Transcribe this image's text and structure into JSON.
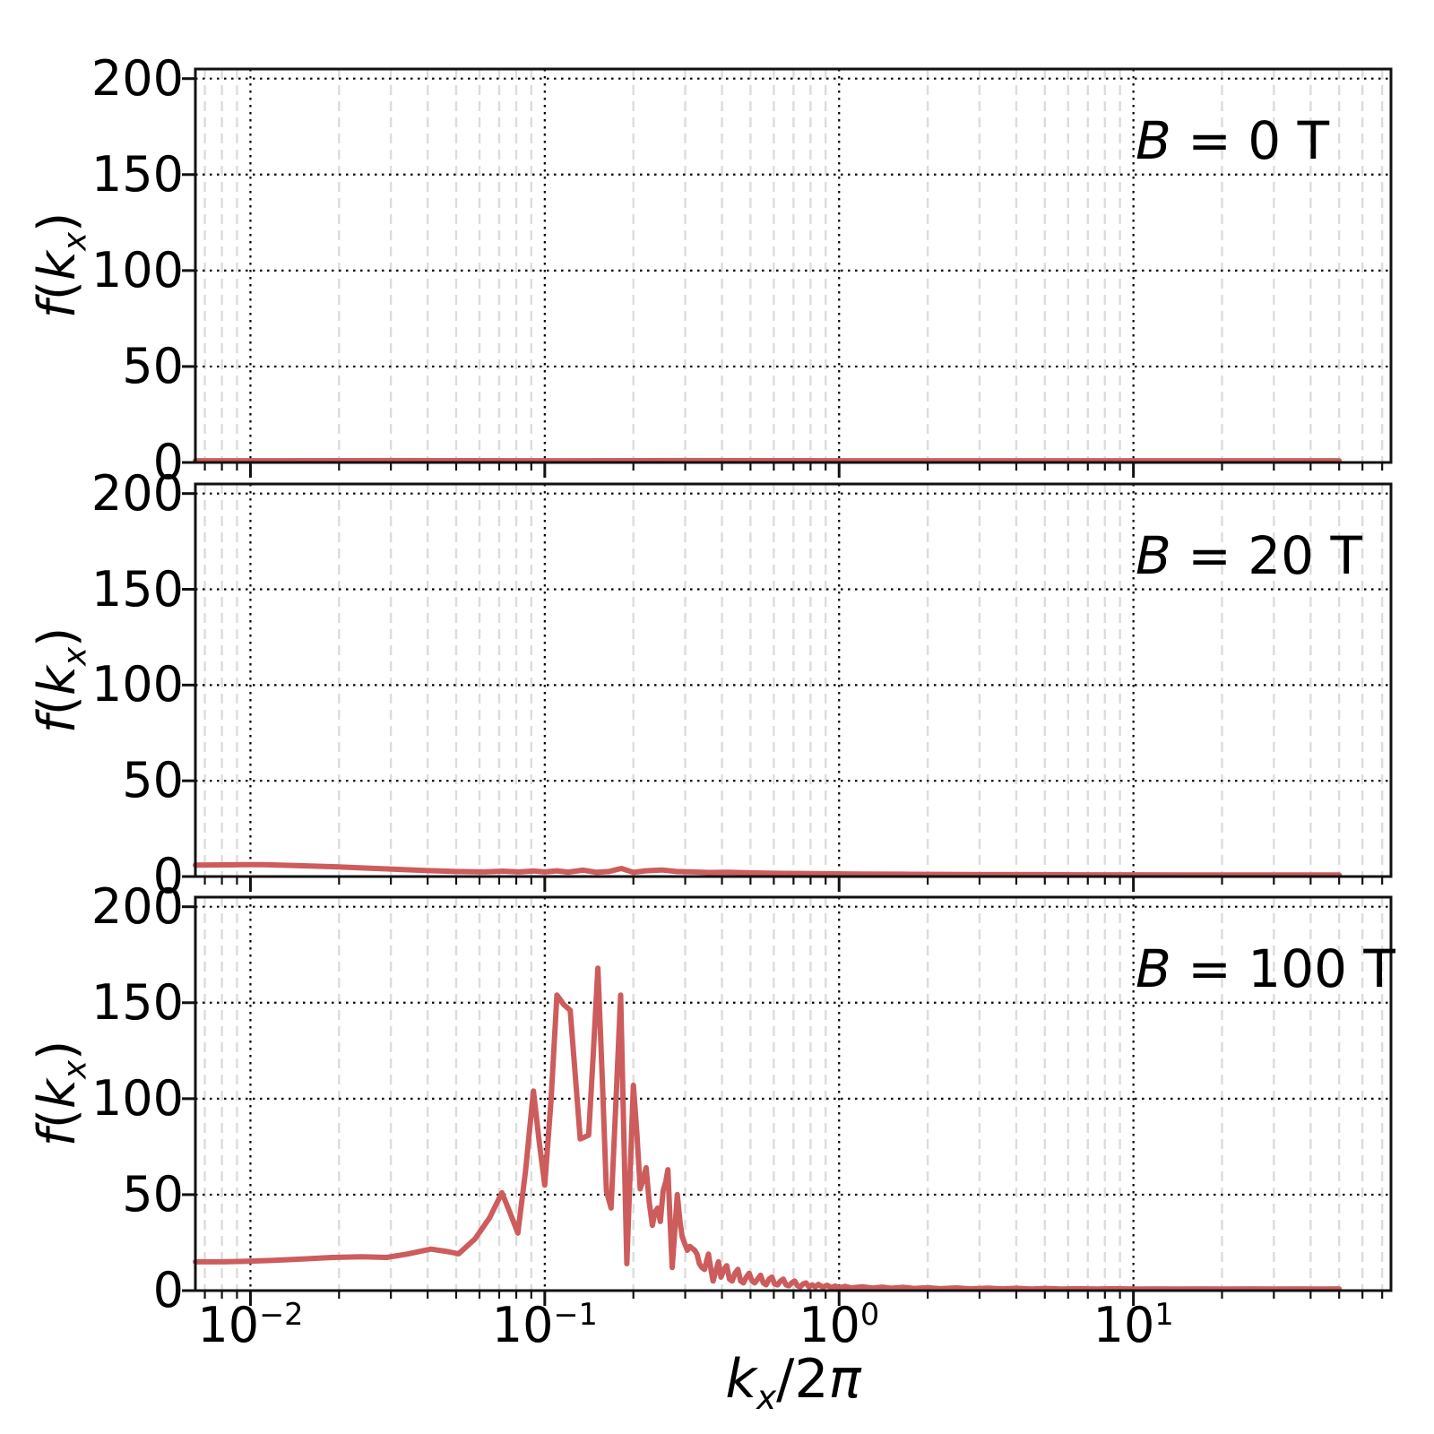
{
  "figure": {
    "background": "#ffffff",
    "line_color": "#CD5C5C",
    "spine_color": "#111111",
    "grid_major_color": "#000000",
    "grid_minor_color": "#dcdcdc"
  },
  "labels": {
    "ylabel": {
      "f": "f",
      "open": "(",
      "k": "k",
      "sub": "x",
      "close": ")"
    },
    "xlabel": {
      "k": "k",
      "sub": "x",
      "slash2": "/2",
      "pi": "π"
    },
    "ytick_labels": [
      "0",
      "50",
      "100",
      "150",
      "200"
    ],
    "xtick_labels": [
      {
        "base": "10",
        "exp": "−2"
      },
      {
        "base": "10",
        "exp": "−1"
      },
      {
        "base": "10",
        "exp": "0"
      },
      {
        "base": "10",
        "exp": "1"
      }
    ],
    "annotations": [
      {
        "var": "B",
        "rest": " = 0 T"
      },
      {
        "var": "B",
        "rest": " = 20 T"
      },
      {
        "var": "B",
        "rest": " = 100 T"
      }
    ]
  },
  "chart_data": {
    "type": "line",
    "xscale": "log",
    "xlim": [
      0.0065,
      75
    ],
    "ylim": [
      0,
      205
    ],
    "xticks": [
      0.01,
      0.1,
      1,
      10
    ],
    "yticks": [
      0,
      50,
      100,
      150,
      200
    ],
    "xlabel": "kx/2pi",
    "ylabel": "f(kx)",
    "grid": {
      "major": "dotted black horizontal+vertical",
      "minor": "dashed light-gray vertical only"
    },
    "legend_position": "none",
    "panels": [
      {
        "label": "B = 0 T",
        "series_color": "#CD5C5C",
        "points": [
          [
            0.0065,
            0.9
          ],
          [
            0.01,
            0.9
          ],
          [
            0.03,
            1.0
          ],
          [
            0.1,
            0.9
          ],
          [
            0.3,
            1.0
          ],
          [
            1,
            0.9
          ],
          [
            3,
            0.9
          ],
          [
            10,
            0.9
          ],
          [
            30,
            0.9
          ],
          [
            50,
            0.9
          ]
        ]
      },
      {
        "label": "B = 20 T",
        "series_color": "#CD5C5C",
        "points": [
          [
            0.0065,
            6.0
          ],
          [
            0.008,
            6.1
          ],
          [
            0.0095,
            6.2
          ],
          [
            0.011,
            6.2
          ],
          [
            0.013,
            5.9
          ],
          [
            0.016,
            5.5
          ],
          [
            0.02,
            5.0
          ],
          [
            0.025,
            4.4
          ],
          [
            0.031,
            3.8
          ],
          [
            0.04,
            3.1
          ],
          [
            0.05,
            2.6
          ],
          [
            0.062,
            2.4
          ],
          [
            0.072,
            2.8
          ],
          [
            0.082,
            2.4
          ],
          [
            0.092,
            2.9
          ],
          [
            0.1,
            2.4
          ],
          [
            0.11,
            3.0
          ],
          [
            0.12,
            2.3
          ],
          [
            0.135,
            3.3
          ],
          [
            0.15,
            2.2
          ],
          [
            0.165,
            2.6
          ],
          [
            0.182,
            4.2
          ],
          [
            0.2,
            2.2
          ],
          [
            0.22,
            3.0
          ],
          [
            0.25,
            3.4
          ],
          [
            0.28,
            2.6
          ],
          [
            0.32,
            2.4
          ],
          [
            0.36,
            2.1
          ],
          [
            0.42,
            2.2
          ],
          [
            0.5,
            1.9
          ],
          [
            0.6,
            1.7
          ],
          [
            0.75,
            1.6
          ],
          [
            0.95,
            1.4
          ],
          [
            1.2,
            1.3
          ],
          [
            1.6,
            1.2
          ],
          [
            2.2,
            1.1
          ],
          [
            3,
            1.0
          ],
          [
            4.5,
            1.0
          ],
          [
            7,
            0.9
          ],
          [
            10,
            0.9
          ],
          [
            15,
            0.8
          ],
          [
            25,
            0.8
          ],
          [
            40,
            0.8
          ],
          [
            50,
            0.8
          ]
        ]
      },
      {
        "label": "B = 100 T",
        "series_color": "#CD5C5C",
        "points": [
          [
            0.0065,
            15
          ],
          [
            0.008,
            15
          ],
          [
            0.0095,
            15.2
          ],
          [
            0.012,
            15.8
          ],
          [
            0.015,
            16.5
          ],
          [
            0.019,
            17.3
          ],
          [
            0.024,
            17.6
          ],
          [
            0.029,
            17.3
          ],
          [
            0.034,
            19
          ],
          [
            0.041,
            21.6
          ],
          [
            0.046,
            20.5
          ],
          [
            0.051,
            19.2
          ],
          [
            0.058,
            27
          ],
          [
            0.065,
            38
          ],
          [
            0.0715,
            51
          ],
          [
            0.076,
            41
          ],
          [
            0.081,
            30
          ],
          [
            0.086,
            62
          ],
          [
            0.0915,
            104
          ],
          [
            0.096,
            76
          ],
          [
            0.1,
            55
          ],
          [
            0.105,
            99
          ],
          [
            0.11,
            154
          ],
          [
            0.116,
            149
          ],
          [
            0.122,
            146
          ],
          [
            0.127,
            112
          ],
          [
            0.132,
            79
          ],
          [
            0.1365,
            80
          ],
          [
            0.141,
            81
          ],
          [
            0.146,
            122
          ],
          [
            0.1515,
            168
          ],
          [
            0.157,
            108
          ],
          [
            0.162,
            52
          ],
          [
            0.168,
            43
          ],
          [
            0.1745,
            98
          ],
          [
            0.181,
            154
          ],
          [
            0.1855,
            82
          ],
          [
            0.19,
            14
          ],
          [
            0.195,
            62
          ],
          [
            0.2,
            107
          ],
          [
            0.2055,
            82
          ],
          [
            0.211,
            53
          ],
          [
            0.216,
            58
          ],
          [
            0.221,
            64
          ],
          [
            0.2265,
            46
          ],
          [
            0.232,
            34
          ],
          [
            0.237,
            41
          ],
          [
            0.242,
            43
          ],
          [
            0.247,
            36
          ],
          [
            0.2525,
            52
          ],
          [
            0.258,
            57
          ],
          [
            0.262,
            63
          ],
          [
            0.267,
            34
          ],
          [
            0.271,
            12
          ],
          [
            0.2765,
            31
          ],
          [
            0.282,
            50
          ],
          [
            0.288,
            36
          ],
          [
            0.293,
            28
          ],
          [
            0.298,
            25
          ],
          [
            0.305,
            21
          ],
          [
            0.311,
            23
          ],
          [
            0.317,
            22
          ],
          [
            0.323,
            21
          ],
          [
            0.329,
            19
          ],
          [
            0.335,
            14
          ],
          [
            0.342,
            12
          ],
          [
            0.349,
            11
          ],
          [
            0.354,
            15
          ],
          [
            0.36,
            19
          ],
          [
            0.366,
            12
          ],
          [
            0.373,
            5
          ],
          [
            0.381,
            10
          ],
          [
            0.389,
            15
          ],
          [
            0.397,
            7
          ],
          [
            0.406,
            11
          ],
          [
            0.415,
            13
          ],
          [
            0.424,
            6
          ],
          [
            0.433,
            5
          ],
          [
            0.443,
            9
          ],
          [
            0.453,
            11
          ],
          [
            0.463,
            5
          ],
          [
            0.473,
            4
          ],
          [
            0.484,
            7
          ],
          [
            0.495,
            9
          ],
          [
            0.506,
            5
          ],
          [
            0.517,
            4
          ],
          [
            0.529,
            6
          ],
          [
            0.541,
            8
          ],
          [
            0.553,
            4
          ],
          [
            0.565,
            3
          ],
          [
            0.578,
            6
          ],
          [
            0.591,
            7
          ],
          [
            0.604,
            3.5
          ],
          [
            0.618,
            3
          ],
          [
            0.632,
            5
          ],
          [
            0.646,
            6
          ],
          [
            0.66,
            3
          ],
          [
            0.675,
            2.5
          ],
          [
            0.69,
            4
          ],
          [
            0.706,
            5
          ],
          [
            0.722,
            2.5
          ],
          [
            0.738,
            2
          ],
          [
            0.755,
            3.5
          ],
          [
            0.772,
            4
          ],
          [
            0.79,
            2
          ],
          [
            0.81,
            3
          ],
          [
            0.83,
            2
          ],
          [
            0.85,
            3.2
          ],
          [
            0.88,
            1.8
          ],
          [
            0.91,
            2.8
          ],
          [
            0.94,
            1.6
          ],
          [
            0.97,
            2.4
          ],
          [
            1.0,
            1.5
          ],
          [
            1.05,
            2.2
          ],
          [
            1.1,
            1.4
          ],
          [
            1.2,
            2.0
          ],
          [
            1.3,
            1.3
          ],
          [
            1.4,
            1.8
          ],
          [
            1.5,
            1.2
          ],
          [
            1.65,
            1.7
          ],
          [
            1.8,
            1.1
          ],
          [
            2.0,
            1.5
          ],
          [
            2.2,
            1.0
          ],
          [
            2.5,
            1.4
          ],
          [
            2.8,
            0.9
          ],
          [
            3.2,
            1.3
          ],
          [
            3.6,
            0.9
          ],
          [
            4.0,
            1.2
          ],
          [
            4.5,
            0.8
          ],
          [
            5.0,
            1.1
          ],
          [
            5.7,
            0.8
          ],
          [
            6.5,
            1.0
          ],
          [
            7.5,
            0.8
          ],
          [
            8.5,
            1.0
          ],
          [
            10,
            0.8
          ],
          [
            12,
            0.9
          ],
          [
            14,
            0.8
          ],
          [
            17,
            0.9
          ],
          [
            20,
            0.8
          ],
          [
            25,
            0.9
          ],
          [
            30,
            0.8
          ],
          [
            36,
            0.9
          ],
          [
            43,
            0.8
          ],
          [
            50,
            0.9
          ]
        ]
      }
    ]
  }
}
